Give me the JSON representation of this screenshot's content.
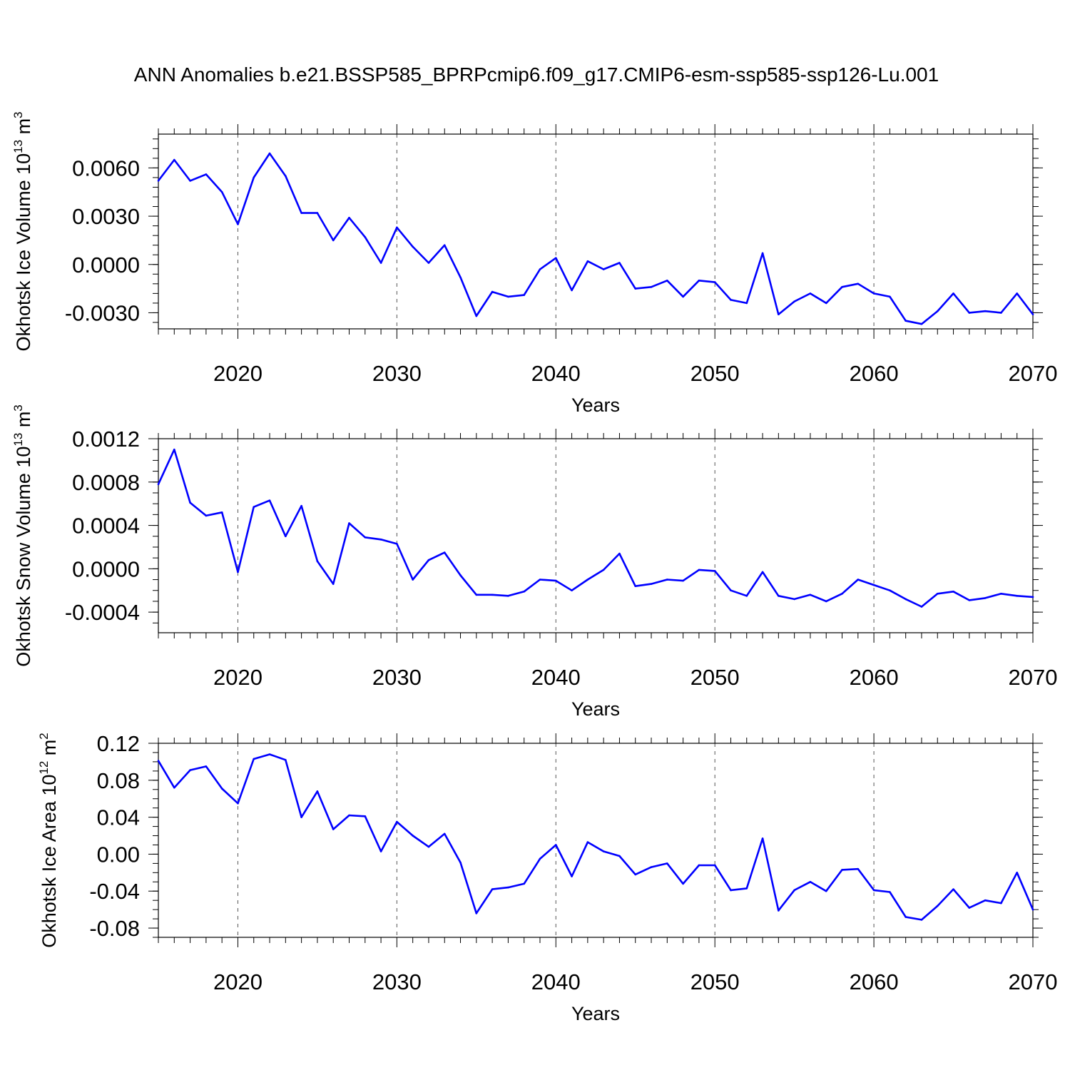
{
  "title": "ANN Anomalies b.e21.BSSP585_BPRPcmip6.f09_g17.CMIP6-esm-ssp585-ssp126-Lu.001",
  "colors": {
    "line": "#0000ff",
    "axis": "#000000",
    "grid": "#555555"
  },
  "chart_data": [
    {
      "type": "line",
      "ylabel": "Okhotsk Ice Volume",
      "yunit_base": "10",
      "yunit_exp": "13",
      "yunit_unit": "m",
      "yunit_unit_exp": "3",
      "xlabel": "Years",
      "xlim": [
        2015,
        2070
      ],
      "ylim": [
        -0.004,
        0.0081
      ],
      "xticks": [
        "2020",
        "2030",
        "2040",
        "2050",
        "2060",
        "2070"
      ],
      "yticks": [
        "0.0060",
        "0.0030",
        "0.0000",
        "-0.0030"
      ],
      "ytick_values": [
        0.006,
        0.003,
        0.0,
        -0.003
      ],
      "yminor_step": 0.0006,
      "grid": "vertical dashed at decades",
      "x": [
        2015,
        2016,
        2017,
        2018,
        2019,
        2020,
        2021,
        2022,
        2023,
        2024,
        2025,
        2026,
        2027,
        2028,
        2029,
        2030,
        2031,
        2032,
        2033,
        2034,
        2035,
        2036,
        2037,
        2038,
        2039,
        2040,
        2041,
        2042,
        2043,
        2044,
        2045,
        2046,
        2047,
        2048,
        2049,
        2050,
        2051,
        2052,
        2053,
        2054,
        2055,
        2056,
        2057,
        2058,
        2059,
        2060,
        2061,
        2062,
        2063,
        2064,
        2065,
        2066,
        2067,
        2068,
        2069,
        2070
      ],
      "values": [
        0.0052,
        0.0065,
        0.0052,
        0.0056,
        0.0045,
        0.0025,
        0.0054,
        0.0069,
        0.0055,
        0.0032,
        0.0032,
        0.0015,
        0.0029,
        0.0017,
        0.0001,
        0.0023,
        0.0011,
        0.0001,
        0.0012,
        -0.0008,
        -0.0032,
        -0.0017,
        -0.002,
        -0.0019,
        -0.0003,
        0.0004,
        -0.0016,
        0.0002,
        -0.0003,
        0.0001,
        -0.0015,
        -0.0014,
        -0.001,
        -0.002,
        -0.001,
        -0.0011,
        -0.0022,
        -0.0024,
        0.0007,
        -0.0031,
        -0.0023,
        -0.0018,
        -0.0024,
        -0.0014,
        -0.0012,
        -0.0018,
        -0.002,
        -0.0035,
        -0.0037,
        -0.0029,
        -0.0018,
        -0.003,
        -0.0029,
        -0.003,
        -0.0018,
        -0.0031
      ]
    },
    {
      "type": "line",
      "ylabel": "Okhotsk Snow Volume",
      "yunit_base": "10",
      "yunit_exp": "13",
      "yunit_unit": "m",
      "yunit_unit_exp": "3",
      "xlabel": "Years",
      "xlim": [
        2015,
        2070
      ],
      "ylim": [
        -0.00059,
        0.0012
      ],
      "xticks": [
        "2020",
        "2030",
        "2040",
        "2050",
        "2060",
        "2070"
      ],
      "yticks": [
        "0.0012",
        "0.0008",
        "0.0004",
        "0.0000",
        "-0.0004"
      ],
      "ytick_values": [
        0.0012,
        0.0008,
        0.0004,
        0.0,
        -0.0004
      ],
      "yminor_step": 0.0001,
      "grid": "vertical dashed at decades",
      "x": [
        2015,
        2016,
        2017,
        2018,
        2019,
        2020,
        2021,
        2022,
        2023,
        2024,
        2025,
        2026,
        2027,
        2028,
        2029,
        2030,
        2031,
        2032,
        2033,
        2034,
        2035,
        2036,
        2037,
        2038,
        2039,
        2040,
        2041,
        2042,
        2043,
        2044,
        2045,
        2046,
        2047,
        2048,
        2049,
        2050,
        2051,
        2052,
        2053,
        2054,
        2055,
        2056,
        2057,
        2058,
        2059,
        2060,
        2061,
        2062,
        2063,
        2064,
        2065,
        2066,
        2067,
        2068,
        2069,
        2070
      ],
      "values": [
        0.00078,
        0.0011,
        0.00061,
        0.00049,
        0.00052,
        -3e-05,
        0.00057,
        0.00063,
        0.0003,
        0.00058,
        7e-05,
        -0.00014,
        0.00042,
        0.00029,
        0.00027,
        0.00023,
        -0.0001,
        8e-05,
        0.00015,
        -6e-05,
        -0.00024,
        -0.00024,
        -0.00025,
        -0.00021,
        -0.0001,
        -0.00011,
        -0.0002,
        -0.0001,
        -1e-05,
        0.00014,
        -0.00016,
        -0.00014,
        -0.0001,
        -0.00011,
        -1e-05,
        -2e-05,
        -0.0002,
        -0.00025,
        -3e-05,
        -0.00025,
        -0.00028,
        -0.00024,
        -0.0003,
        -0.00023,
        -0.0001,
        -0.00015,
        -0.0002,
        -0.00028,
        -0.00035,
        -0.00023,
        -0.00021,
        -0.00029,
        -0.00027,
        -0.00023,
        -0.00025,
        -0.00026
      ]
    },
    {
      "type": "line",
      "ylabel": "Okhotsk Ice Area",
      "yunit_base": "10",
      "yunit_exp": "12",
      "yunit_unit": "m",
      "yunit_unit_exp": "2",
      "xlabel": "Years",
      "xlim": [
        2015,
        2070
      ],
      "ylim": [
        -0.09,
        0.12
      ],
      "xticks": [
        "2020",
        "2030",
        "2040",
        "2050",
        "2060",
        "2070"
      ],
      "yticks": [
        "0.12",
        "0.08",
        "0.04",
        "0.00",
        "-0.04",
        "-0.08"
      ],
      "ytick_values": [
        0.12,
        0.08,
        0.04,
        0.0,
        -0.04,
        -0.08
      ],
      "yminor_step": 0.01,
      "grid": "vertical dashed at decades",
      "x": [
        2015,
        2016,
        2017,
        2018,
        2019,
        2020,
        2021,
        2022,
        2023,
        2024,
        2025,
        2026,
        2027,
        2028,
        2029,
        2030,
        2031,
        2032,
        2033,
        2034,
        2035,
        2036,
        2037,
        2038,
        2039,
        2040,
        2041,
        2042,
        2043,
        2044,
        2045,
        2046,
        2047,
        2048,
        2049,
        2050,
        2051,
        2052,
        2053,
        2054,
        2055,
        2056,
        2057,
        2058,
        2059,
        2060,
        2061,
        2062,
        2063,
        2064,
        2065,
        2066,
        2067,
        2068,
        2069,
        2070
      ],
      "values": [
        0.101,
        0.072,
        0.091,
        0.095,
        0.071,
        0.055,
        0.103,
        0.108,
        0.102,
        0.04,
        0.068,
        0.027,
        0.042,
        0.041,
        0.003,
        0.035,
        0.02,
        0.008,
        0.022,
        -0.009,
        -0.064,
        -0.038,
        -0.036,
        -0.032,
        -0.005,
        0.01,
        -0.024,
        0.013,
        0.003,
        -0.002,
        -0.022,
        -0.014,
        -0.01,
        -0.032,
        -0.012,
        -0.012,
        -0.039,
        -0.037,
        0.017,
        -0.061,
        -0.039,
        -0.03,
        -0.04,
        -0.017,
        -0.016,
        -0.039,
        -0.041,
        -0.068,
        -0.071,
        -0.056,
        -0.038,
        -0.058,
        -0.05,
        -0.053,
        -0.02,
        -0.06
      ]
    }
  ]
}
